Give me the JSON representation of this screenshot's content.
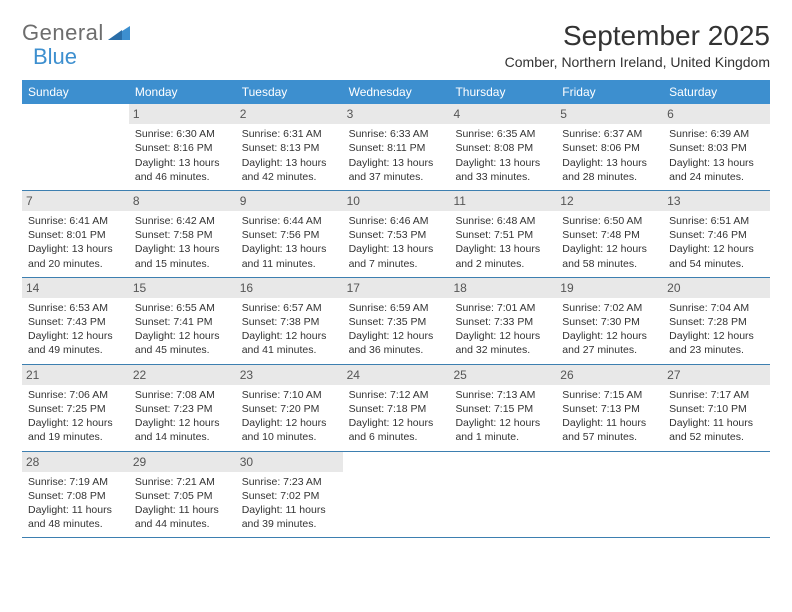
{
  "logo": {
    "text1": "General",
    "text2": "Blue"
  },
  "title": "September 2025",
  "location": "Comber, Northern Ireland, United Kingdom",
  "colors": {
    "header_bg": "#3d8fcf",
    "header_text": "#ffffff",
    "daynum_bg": "#e8e8e8",
    "row_border": "#3d7fb0",
    "body_text": "#333333",
    "logo_gray": "#6d6d6d",
    "logo_blue": "#3d8fcf",
    "page_bg": "#ffffff"
  },
  "weekdays": [
    "Sunday",
    "Monday",
    "Tuesday",
    "Wednesday",
    "Thursday",
    "Friday",
    "Saturday"
  ],
  "weeks": [
    [
      {
        "n": "",
        "sr": "",
        "ss": "",
        "dl": ""
      },
      {
        "n": "1",
        "sr": "Sunrise: 6:30 AM",
        "ss": "Sunset: 8:16 PM",
        "dl": "Daylight: 13 hours and 46 minutes."
      },
      {
        "n": "2",
        "sr": "Sunrise: 6:31 AM",
        "ss": "Sunset: 8:13 PM",
        "dl": "Daylight: 13 hours and 42 minutes."
      },
      {
        "n": "3",
        "sr": "Sunrise: 6:33 AM",
        "ss": "Sunset: 8:11 PM",
        "dl": "Daylight: 13 hours and 37 minutes."
      },
      {
        "n": "4",
        "sr": "Sunrise: 6:35 AM",
        "ss": "Sunset: 8:08 PM",
        "dl": "Daylight: 13 hours and 33 minutes."
      },
      {
        "n": "5",
        "sr": "Sunrise: 6:37 AM",
        "ss": "Sunset: 8:06 PM",
        "dl": "Daylight: 13 hours and 28 minutes."
      },
      {
        "n": "6",
        "sr": "Sunrise: 6:39 AM",
        "ss": "Sunset: 8:03 PM",
        "dl": "Daylight: 13 hours and 24 minutes."
      }
    ],
    [
      {
        "n": "7",
        "sr": "Sunrise: 6:41 AM",
        "ss": "Sunset: 8:01 PM",
        "dl": "Daylight: 13 hours and 20 minutes."
      },
      {
        "n": "8",
        "sr": "Sunrise: 6:42 AM",
        "ss": "Sunset: 7:58 PM",
        "dl": "Daylight: 13 hours and 15 minutes."
      },
      {
        "n": "9",
        "sr": "Sunrise: 6:44 AM",
        "ss": "Sunset: 7:56 PM",
        "dl": "Daylight: 13 hours and 11 minutes."
      },
      {
        "n": "10",
        "sr": "Sunrise: 6:46 AM",
        "ss": "Sunset: 7:53 PM",
        "dl": "Daylight: 13 hours and 7 minutes."
      },
      {
        "n": "11",
        "sr": "Sunrise: 6:48 AM",
        "ss": "Sunset: 7:51 PM",
        "dl": "Daylight: 13 hours and 2 minutes."
      },
      {
        "n": "12",
        "sr": "Sunrise: 6:50 AM",
        "ss": "Sunset: 7:48 PM",
        "dl": "Daylight: 12 hours and 58 minutes."
      },
      {
        "n": "13",
        "sr": "Sunrise: 6:51 AM",
        "ss": "Sunset: 7:46 PM",
        "dl": "Daylight: 12 hours and 54 minutes."
      }
    ],
    [
      {
        "n": "14",
        "sr": "Sunrise: 6:53 AM",
        "ss": "Sunset: 7:43 PM",
        "dl": "Daylight: 12 hours and 49 minutes."
      },
      {
        "n": "15",
        "sr": "Sunrise: 6:55 AM",
        "ss": "Sunset: 7:41 PM",
        "dl": "Daylight: 12 hours and 45 minutes."
      },
      {
        "n": "16",
        "sr": "Sunrise: 6:57 AM",
        "ss": "Sunset: 7:38 PM",
        "dl": "Daylight: 12 hours and 41 minutes."
      },
      {
        "n": "17",
        "sr": "Sunrise: 6:59 AM",
        "ss": "Sunset: 7:35 PM",
        "dl": "Daylight: 12 hours and 36 minutes."
      },
      {
        "n": "18",
        "sr": "Sunrise: 7:01 AM",
        "ss": "Sunset: 7:33 PM",
        "dl": "Daylight: 12 hours and 32 minutes."
      },
      {
        "n": "19",
        "sr": "Sunrise: 7:02 AM",
        "ss": "Sunset: 7:30 PM",
        "dl": "Daylight: 12 hours and 27 minutes."
      },
      {
        "n": "20",
        "sr": "Sunrise: 7:04 AM",
        "ss": "Sunset: 7:28 PM",
        "dl": "Daylight: 12 hours and 23 minutes."
      }
    ],
    [
      {
        "n": "21",
        "sr": "Sunrise: 7:06 AM",
        "ss": "Sunset: 7:25 PM",
        "dl": "Daylight: 12 hours and 19 minutes."
      },
      {
        "n": "22",
        "sr": "Sunrise: 7:08 AM",
        "ss": "Sunset: 7:23 PM",
        "dl": "Daylight: 12 hours and 14 minutes."
      },
      {
        "n": "23",
        "sr": "Sunrise: 7:10 AM",
        "ss": "Sunset: 7:20 PM",
        "dl": "Daylight: 12 hours and 10 minutes."
      },
      {
        "n": "24",
        "sr": "Sunrise: 7:12 AM",
        "ss": "Sunset: 7:18 PM",
        "dl": "Daylight: 12 hours and 6 minutes."
      },
      {
        "n": "25",
        "sr": "Sunrise: 7:13 AM",
        "ss": "Sunset: 7:15 PM",
        "dl": "Daylight: 12 hours and 1 minute."
      },
      {
        "n": "26",
        "sr": "Sunrise: 7:15 AM",
        "ss": "Sunset: 7:13 PM",
        "dl": "Daylight: 11 hours and 57 minutes."
      },
      {
        "n": "27",
        "sr": "Sunrise: 7:17 AM",
        "ss": "Sunset: 7:10 PM",
        "dl": "Daylight: 11 hours and 52 minutes."
      }
    ],
    [
      {
        "n": "28",
        "sr": "Sunrise: 7:19 AM",
        "ss": "Sunset: 7:08 PM",
        "dl": "Daylight: 11 hours and 48 minutes."
      },
      {
        "n": "29",
        "sr": "Sunrise: 7:21 AM",
        "ss": "Sunset: 7:05 PM",
        "dl": "Daylight: 11 hours and 44 minutes."
      },
      {
        "n": "30",
        "sr": "Sunrise: 7:23 AM",
        "ss": "Sunset: 7:02 PM",
        "dl": "Daylight: 11 hours and 39 minutes."
      },
      {
        "n": "",
        "sr": "",
        "ss": "",
        "dl": ""
      },
      {
        "n": "",
        "sr": "",
        "ss": "",
        "dl": ""
      },
      {
        "n": "",
        "sr": "",
        "ss": "",
        "dl": ""
      },
      {
        "n": "",
        "sr": "",
        "ss": "",
        "dl": ""
      }
    ]
  ]
}
